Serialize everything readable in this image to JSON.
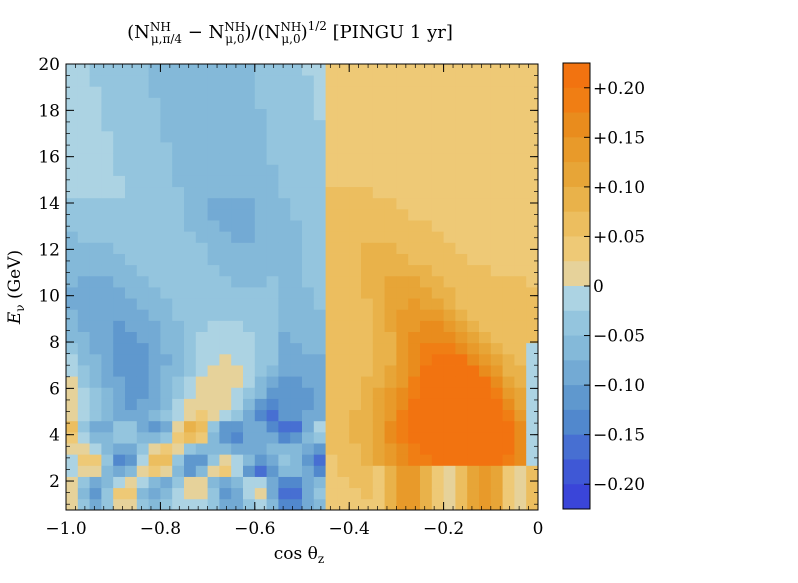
{
  "chart_data": {
    "type": "heatmap",
    "title_parts": [
      "(N",
      "NH",
      "μ,π/4",
      " − N",
      "NH",
      "μ,0",
      ")/(N",
      "NH",
      "μ,0",
      ")",
      "1/2",
      " [PINGU 1 yr]"
    ],
    "xlabel_main": "cos θ",
    "xlabel_sub": "z",
    "ylabel_main": "E",
    "ylabel_sub": "ν",
    "ylabel_unit": " (GeV)",
    "xlim": [
      -1.0,
      0.0
    ],
    "ylim": [
      1,
      20
    ],
    "x_ticks": [
      -1.0,
      -0.8,
      -0.6,
      -0.4,
      -0.2,
      0.0
    ],
    "x_tick_labels": [
      "−1.0",
      "−0.8",
      "−0.6",
      "−0.4",
      "−0.2",
      "0"
    ],
    "y_ticks": [
      2,
      4,
      6,
      8,
      10,
      12,
      14,
      16,
      18,
      20
    ],
    "y_tick_labels": [
      "2",
      "4",
      "6",
      "8",
      "10",
      "12",
      "14",
      "16",
      "18",
      "20"
    ],
    "grid": false,
    "colorbar": {
      "range": [
        -0.225,
        0.225
      ],
      "labels": [
        "+0.20",
        "+0.15",
        "+0.10",
        "+0.05",
        "0",
        "−0.05",
        "−0.10",
        "−0.15",
        "−0.20"
      ],
      "label_values": [
        0.2,
        0.15,
        0.1,
        0.05,
        0,
        -0.05,
        -0.1,
        -0.15,
        -0.2
      ],
      "band_colors": [
        "#f07a10",
        "#e88d1c",
        "#e7a034",
        "#ecb652",
        "#efc978",
        "#e2d6a4",
        "#a9d4e5",
        "#8bc1dc",
        "#72add4",
        "#5a94ce",
        "#4a7ed4",
        "#3d5cd6",
        "#3a45d8"
      ],
      "band_edges": [
        0.225,
        0.2,
        0.175,
        0.15,
        0.125,
        0.1,
        0.075,
        0.05,
        0.025,
        0,
        -0.025,
        -0.05,
        -0.075,
        -0.1,
        -0.125,
        -0.15,
        -0.175,
        -0.2,
        -0.225
      ],
      "band_colors_full": [
        "#f27310",
        "#f07e14",
        "#e98c1d",
        "#e89a2a",
        "#e7a537",
        "#e9b24a",
        "#ecbe5f",
        "#eec976",
        "#e6d29a",
        "#acd3e3",
        "#94c5de",
        "#84b9d9",
        "#73aad4",
        "#5f98ce",
        "#5188cd",
        "#476fd2",
        "#3f58d6",
        "#3a45d9"
      ]
    },
    "heatmap": {
      "x_bins": 40,
      "y_bins": 40,
      "x_range": [
        -1.0,
        0.0
      ],
      "y_range": [
        0.75,
        20
      ],
      "description": "values computed by the page script from a smooth oscillation pattern approximating the plotted field"
    }
  }
}
